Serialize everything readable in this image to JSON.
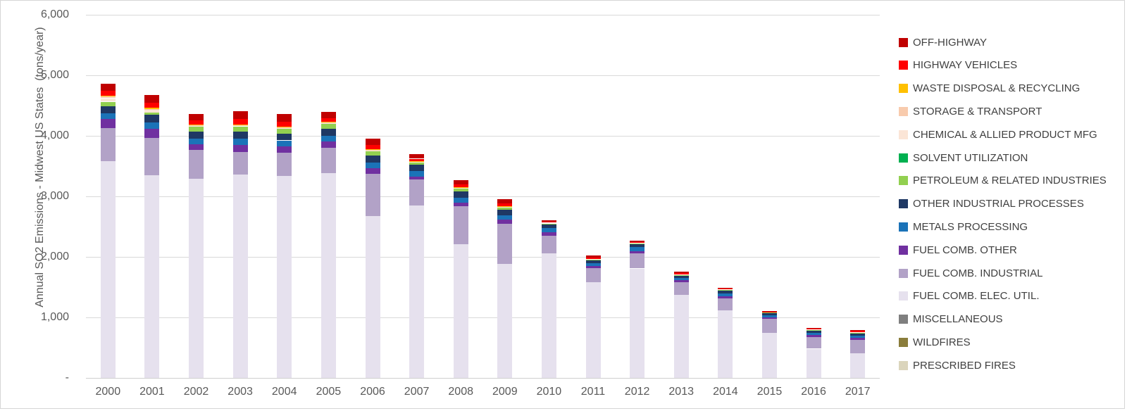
{
  "chart_data": {
    "type": "bar",
    "stacked": true,
    "title": "",
    "xlabel": "",
    "ylabel": "Annual SO2 Emissions - Midwest US States  (tons/year)",
    "ylim": [
      0,
      6000
    ],
    "grid": true,
    "legend_position": "right",
    "y_ticks": [
      {
        "value": 6000,
        "label": "6,000"
      },
      {
        "value": 5000,
        "label": "5,000"
      },
      {
        "value": 4000,
        "label": "4,000"
      },
      {
        "value": 3000,
        "label": "3,000"
      },
      {
        "value": 2000,
        "label": "2,000"
      },
      {
        "value": 1000,
        "label": "1,000"
      },
      {
        "value": 0,
        "label": "-"
      }
    ],
    "categories": [
      "2000",
      "2001",
      "2002",
      "2003",
      "2004",
      "2005",
      "2006",
      "2007",
      "2008",
      "2009",
      "2010",
      "2011",
      "2012",
      "2013",
      "2014",
      "2015",
      "2016",
      "2017"
    ],
    "series_note": "series listed in legend order (top of stack first); bars stack bottom-up in reverse order; values in tons/year",
    "series": [
      {
        "name": "OFF-HIGHWAY",
        "color": "#C00000",
        "values": [
          115,
          125,
          105,
          135,
          125,
          105,
          108,
          78,
          70,
          73,
          28,
          30,
          25,
          30,
          15,
          12,
          14,
          16
        ]
      },
      {
        "name": "HIGHWAY VEHICLES",
        "color": "#FF0000",
        "values": [
          80,
          88,
          78,
          86,
          80,
          60,
          70,
          43,
          47,
          47,
          17,
          20,
          13,
          20,
          12,
          11,
          13,
          15
        ]
      },
      {
        "name": "WASTE DISPOSAL & RECYCLING",
        "color": "#FFC000",
        "values": [
          20,
          20,
          10,
          10,
          10,
          10,
          10,
          8,
          8,
          8,
          5,
          5,
          5,
          5,
          4,
          4,
          4,
          4
        ]
      },
      {
        "name": "STORAGE & TRANSPORT",
        "color": "#F8CBAD",
        "values": [
          25,
          15,
          8,
          8,
          8,
          8,
          8,
          5,
          5,
          5,
          3,
          3,
          3,
          3,
          2,
          2,
          2,
          2
        ]
      },
      {
        "name": "CHEMICAL & ALLIED PRODUCT MFG",
        "color": "#FBE5D6",
        "values": [
          55,
          40,
          15,
          15,
          15,
          15,
          12,
          10,
          8,
          8,
          5,
          5,
          5,
          5,
          3,
          3,
          3,
          3
        ]
      },
      {
        "name": "SOLVENT UTILIZATION",
        "color": "#00B050",
        "values": [
          2,
          2,
          2,
          2,
          2,
          2,
          2,
          2,
          2,
          2,
          1,
          1,
          1,
          1,
          1,
          1,
          1,
          1
        ]
      },
      {
        "name": "PETROLEUM & RELATED INDUSTRIES",
        "color": "#92D050",
        "values": [
          75,
          40,
          77,
          90,
          80,
          80,
          70,
          35,
          47,
          35,
          10,
          10,
          10,
          10,
          8,
          8,
          8,
          8
        ]
      },
      {
        "name": "OTHER INDUSTRIAL PROCESSES",
        "color": "#1F3864",
        "values": [
          115,
          125,
          116,
          116,
          115,
          120,
          116,
          100,
          105,
          93,
          70,
          47,
          50,
          35,
          51,
          35,
          40,
          42
        ]
      },
      {
        "name": "METALS PROCESSING",
        "color": "#1B73B8",
        "values": [
          95,
          108,
          98,
          105,
          100,
          95,
          93,
          88,
          82,
          70,
          65,
          47,
          66,
          30,
          47,
          30,
          35,
          38
        ]
      },
      {
        "name": "FUEL COMB. OTHER",
        "color": "#7030A0",
        "values": [
          155,
          148,
          85,
          108,
          105,
          105,
          93,
          51,
          58,
          70,
          58,
          39,
          39,
          39,
          31,
          28,
          35,
          36
        ]
      },
      {
        "name": "FUEL COMB. INDUSTRIAL",
        "color": "#B2A2C7",
        "values": [
          540,
          610,
          477,
          377,
          380,
          420,
          700,
          434,
          630,
          664,
          291,
          233,
          245,
          206,
          203,
          237,
          193,
          213
        ]
      },
      {
        "name": "FUEL COMB. ELEC. UTIL.",
        "color": "#E6E1EE",
        "values": [
          3580,
          3350,
          3290,
          3355,
          3335,
          3375,
          2670,
          2842,
          2205,
          1880,
          2055,
          1577,
          1805,
          1373,
          1110,
          736,
          479,
          409
        ]
      },
      {
        "name": "MISCELLANEOUS",
        "color": "#7F7F7F",
        "values": [
          2,
          2,
          2,
          2,
          2,
          2,
          2,
          2,
          2,
          2,
          1,
          1,
          1,
          1,
          1,
          1,
          1,
          1
        ]
      },
      {
        "name": "WILDFIRES",
        "color": "#8A7D3B",
        "values": [
          1,
          1,
          1,
          1,
          1,
          1,
          1,
          1,
          1,
          1,
          1,
          1,
          1,
          1,
          1,
          1,
          1,
          1
        ]
      },
      {
        "name": "PRESCRIBED FIRES",
        "color": "#DBD5BC",
        "values": [
          1,
          1,
          1,
          1,
          1,
          1,
          1,
          1,
          1,
          1,
          1,
          1,
          1,
          1,
          1,
          1,
          1,
          1
        ]
      }
    ]
  }
}
